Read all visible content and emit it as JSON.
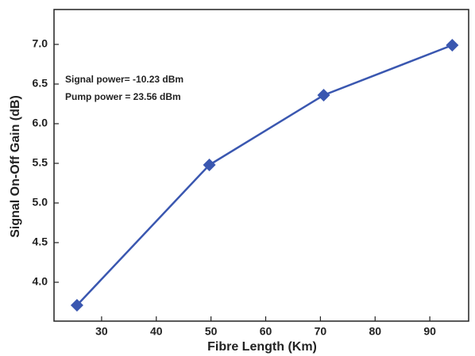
{
  "chart_data": {
    "type": "line",
    "x_label": "Fibre Length (Km)",
    "y_label": "Signal On-Off Gain (dB)",
    "annotations": [
      "Signal power= -10.23 dBm",
      "Pump power = 23.56 dBm"
    ],
    "x": [
      25.5,
      49.7,
      70.6,
      94.1
    ],
    "series": [
      {
        "color": "#3a57b0",
        "values": [
          3.71,
          5.48,
          6.36,
          6.99
        ]
      }
    ],
    "xlim": [
      21.3,
      97.1
    ],
    "xticks": [
      30,
      40,
      50,
      60,
      70,
      80,
      90
    ],
    "ylim": [
      3.51,
      7.44
    ],
    "yticks": [
      {
        "value": 4,
        "label": "4.0"
      },
      {
        "value": 4.5,
        "label": "4.5"
      },
      {
        "value": 5,
        "label": "5.0"
      },
      {
        "value": 5.5,
        "label": "5.5"
      },
      {
        "value": 6,
        "label": "6.0"
      },
      {
        "value": 6.5,
        "label": "6.5"
      },
      {
        "value": 7,
        "label": "7.0"
      }
    ]
  }
}
